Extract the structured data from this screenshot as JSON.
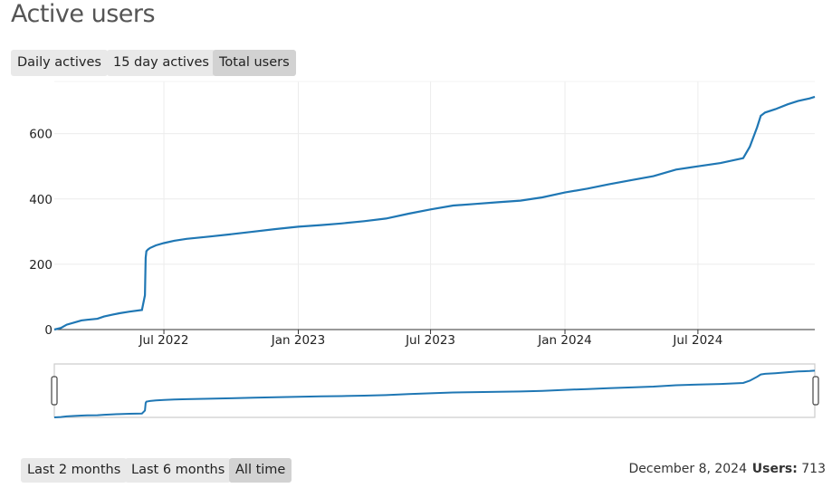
{
  "title": "Active users",
  "metric_tabs": [
    {
      "label": "Daily actives",
      "active": false
    },
    {
      "label": "15 day actives",
      "active": false
    },
    {
      "label": "Total users",
      "active": true
    }
  ],
  "range_tabs": [
    {
      "label": "Last 2 months",
      "active": false
    },
    {
      "label": "Last 6 months",
      "active": false
    },
    {
      "label": "All time",
      "active": true
    }
  ],
  "footer": {
    "date": "December 8, 2024",
    "users_label": "Users:",
    "users_value": "713"
  },
  "colors": {
    "line": "#1f77b4",
    "grid": "#ececec",
    "axis": "#333333"
  },
  "chart_data": {
    "type": "line",
    "title": "",
    "xlabel": "",
    "ylabel": "",
    "xlim": [
      "2022-02-01",
      "2024-12-08"
    ],
    "ylim": [
      0,
      760
    ],
    "yticks": [
      0,
      200,
      400,
      600
    ],
    "ytick_labels": [
      "0",
      "200",
      "400",
      "600"
    ],
    "xticks": [
      "2022-07-01",
      "2023-01-01",
      "2023-07-01",
      "2024-01-01",
      "2024-07-01"
    ],
    "xtick_labels": [
      "Jul 2022",
      "Jan 2023",
      "Jul 2023",
      "Jan 2024",
      "Jul 2024"
    ],
    "grid": true,
    "series": [
      {
        "x": [
          "2022-02-01",
          "2022-02-10",
          "2022-02-18",
          "2022-03-01",
          "2022-03-10",
          "2022-03-18",
          "2022-04-01",
          "2022-04-10",
          "2022-04-20",
          "2022-05-01",
          "2022-05-15",
          "2022-06-01",
          "2022-06-05",
          "2022-06-06",
          "2022-06-07",
          "2022-06-09",
          "2022-06-12",
          "2022-06-20",
          "2022-07-01",
          "2022-07-15",
          "2022-08-01",
          "2022-09-01",
          "2022-10-01",
          "2022-11-01",
          "2022-12-01",
          "2023-01-01",
          "2023-02-01",
          "2023-03-01",
          "2023-04-01",
          "2023-05-01",
          "2023-06-01",
          "2023-07-01",
          "2023-08-01",
          "2023-09-01",
          "2023-10-01",
          "2023-11-01",
          "2023-12-01",
          "2024-01-01",
          "2024-02-01",
          "2024-03-01",
          "2024-04-01",
          "2024-05-01",
          "2024-06-01",
          "2024-07-01",
          "2024-08-01",
          "2024-09-01",
          "2024-09-10",
          "2024-09-20",
          "2024-09-25",
          "2024-10-01",
          "2024-10-15",
          "2024-11-01",
          "2024-11-15",
          "2024-12-01",
          "2024-12-08"
        ],
        "y": [
          0,
          5,
          15,
          22,
          28,
          30,
          33,
          40,
          45,
          50,
          55,
          60,
          105,
          220,
          240,
          245,
          250,
          258,
          265,
          272,
          278,
          285,
          292,
          300,
          308,
          315,
          320,
          325,
          332,
          340,
          355,
          368,
          380,
          385,
          390,
          395,
          405,
          420,
          432,
          445,
          458,
          470,
          490,
          500,
          510,
          525,
          560,
          620,
          655,
          665,
          675,
          690,
          700,
          708,
          713
        ]
      }
    ]
  },
  "navigator": {
    "handles": [
      "left",
      "right"
    ]
  }
}
